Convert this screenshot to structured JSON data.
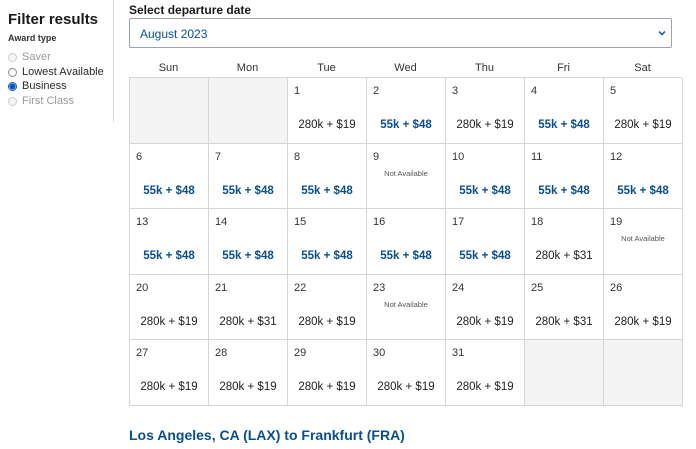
{
  "sidebar": {
    "title": "Filter results",
    "award_type_label": "Award type",
    "options": [
      {
        "label": "Saver",
        "state": "disabled"
      },
      {
        "label": "Lowest Available",
        "state": "enabled"
      },
      {
        "label": "Business",
        "state": "selected"
      },
      {
        "label": "First Class",
        "state": "disabled"
      }
    ]
  },
  "date_selector": {
    "heading": "Select departure date",
    "selected_month": "August 2023"
  },
  "calendar": {
    "weekdays": [
      "Sun",
      "Mon",
      "Tue",
      "Wed",
      "Thu",
      "Fri",
      "Sat"
    ],
    "leading_empty": 2,
    "days": [
      {
        "day": "1",
        "price": "280k + $19",
        "saver": false
      },
      {
        "day": "2",
        "price": "55k + $48",
        "saver": true
      },
      {
        "day": "3",
        "price": "280k + $19",
        "saver": false
      },
      {
        "day": "4",
        "price": "55k + $48",
        "saver": true
      },
      {
        "day": "5",
        "price": "280k + $19",
        "saver": false
      },
      {
        "day": "6",
        "price": "55k + $48",
        "saver": true
      },
      {
        "day": "7",
        "price": "55k + $48",
        "saver": true
      },
      {
        "day": "8",
        "price": "55k + $48",
        "saver": true
      },
      {
        "day": "9",
        "price": "Not Available",
        "saver": false,
        "na": true
      },
      {
        "day": "10",
        "price": "55k + $48",
        "saver": true
      },
      {
        "day": "11",
        "price": "55k + $48",
        "saver": true
      },
      {
        "day": "12",
        "price": "55k + $48",
        "saver": true
      },
      {
        "day": "13",
        "price": "55k + $48",
        "saver": true
      },
      {
        "day": "14",
        "price": "55k + $48",
        "saver": true
      },
      {
        "day": "15",
        "price": "55k + $48",
        "saver": true
      },
      {
        "day": "16",
        "price": "55k + $48",
        "saver": true
      },
      {
        "day": "17",
        "price": "55k + $48",
        "saver": true
      },
      {
        "day": "18",
        "price": "280k + $31",
        "saver": false
      },
      {
        "day": "19",
        "price": "Not Available",
        "saver": false,
        "na": true
      },
      {
        "day": "20",
        "price": "280k + $19",
        "saver": false
      },
      {
        "day": "21",
        "price": "280k + $31",
        "saver": false
      },
      {
        "day": "22",
        "price": "280k + $19",
        "saver": false
      },
      {
        "day": "23",
        "price": "Not Available",
        "saver": false,
        "na": true
      },
      {
        "day": "24",
        "price": "280k + $19",
        "saver": false
      },
      {
        "day": "25",
        "price": "280k + $31",
        "saver": false
      },
      {
        "day": "26",
        "price": "280k + $19",
        "saver": false
      },
      {
        "day": "27",
        "price": "280k + $19",
        "saver": false
      },
      {
        "day": "28",
        "price": "280k + $19",
        "saver": false
      },
      {
        "day": "29",
        "price": "280k + $19",
        "saver": false
      },
      {
        "day": "30",
        "price": "280k + $19",
        "saver": false
      },
      {
        "day": "31",
        "price": "280k + $19",
        "saver": false
      }
    ],
    "trailing_empty": 2
  },
  "route_title": "Los Angeles, CA (LAX) to Frankfurt (FRA)",
  "colors": {
    "accent": "#0b4f8a",
    "radio_selected": "#0a57b8",
    "border": "#d6d6d6"
  }
}
